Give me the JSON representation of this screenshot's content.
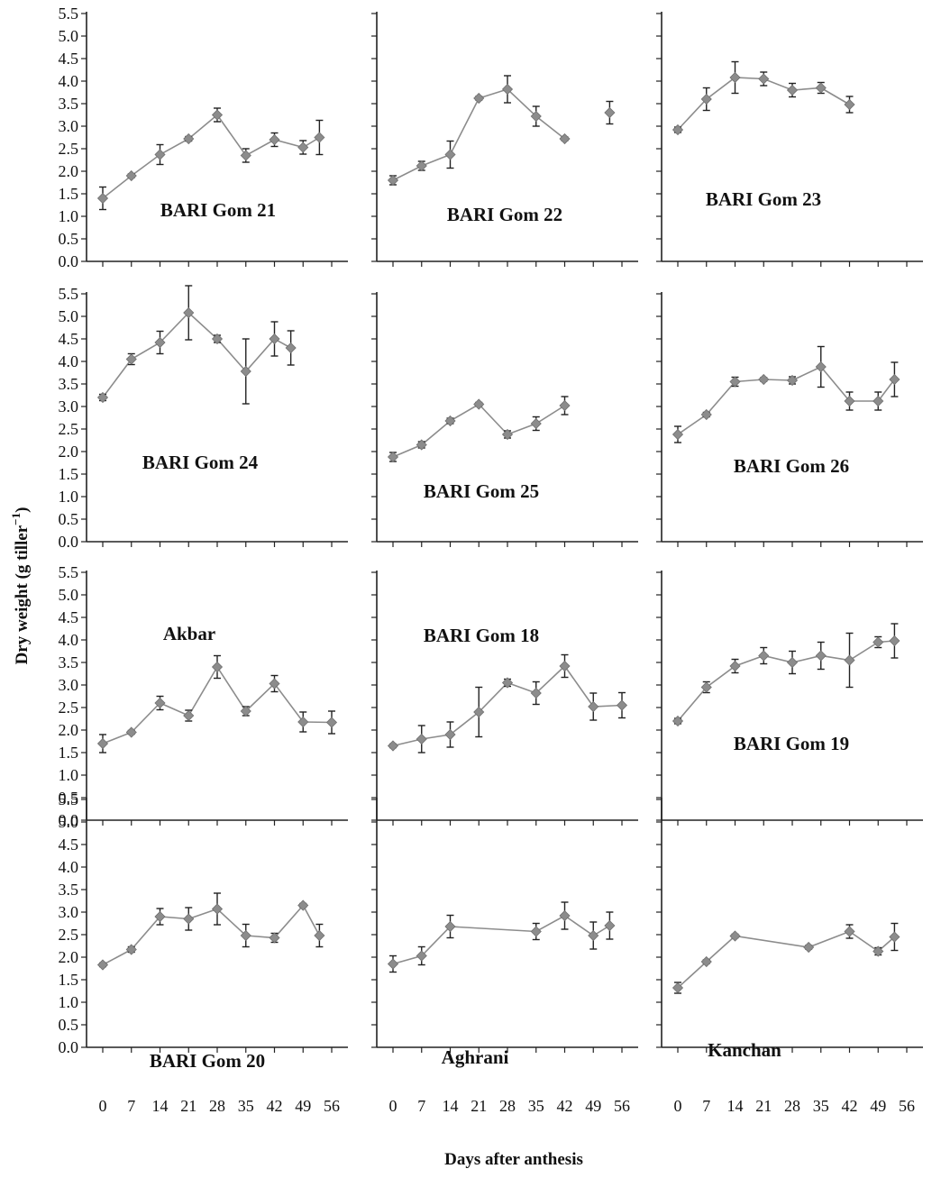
{
  "figure": {
    "ylabel_main": "Dry weight (g tiller",
    "ylabel_sup": "−1",
    "ylabel_close": ")",
    "xlabel": "Days after anthesis"
  },
  "chart_data": [
    {
      "type": "line",
      "label": "BARI Gom 21",
      "x": [
        0,
        7,
        14,
        21,
        28,
        35,
        42,
        49,
        53
      ],
      "y": [
        1.4,
        1.9,
        2.37,
        2.72,
        3.25,
        2.35,
        2.7,
        2.53,
        2.75
      ],
      "err": [
        0.25,
        0.04,
        0.22,
        0.05,
        0.15,
        0.15,
        0.15,
        0.15,
        0.38
      ],
      "ylim": [
        0,
        5.5
      ],
      "xticks": [
        0,
        7,
        14,
        21,
        28,
        35,
        42,
        49,
        56
      ],
      "yticks": [
        "0.0",
        "0.5",
        "1.0",
        "1.5",
        "2.0",
        "2.5",
        "3.0",
        "3.5",
        "4.0",
        "4.5",
        "5.0",
        "5.5"
      ]
    },
    {
      "type": "line",
      "label": "BARI Gom 22",
      "x": [
        0,
        7,
        14,
        21,
        28,
        35,
        42,
        49,
        53
      ],
      "y": [
        1.8,
        2.12,
        2.37,
        3.62,
        3.82,
        3.22,
        2.72,
        null,
        3.3
      ],
      "err": [
        0.1,
        0.1,
        0.3,
        0.04,
        0.3,
        0.22,
        0.04,
        null,
        0.25
      ],
      "ylim": [
        0,
        5.5
      ],
      "xticks": [
        0,
        7,
        14,
        21,
        28,
        35,
        42,
        49,
        56
      ]
    },
    {
      "type": "line",
      "label": "BARI Gom 23",
      "x": [
        0,
        7,
        14,
        21,
        28,
        35,
        42
      ],
      "y": [
        2.92,
        3.6,
        4.08,
        4.05,
        3.8,
        3.85,
        3.48
      ],
      "err": [
        0.06,
        0.25,
        0.35,
        0.15,
        0.15,
        0.12,
        0.18
      ],
      "ylim": [
        0,
        5.5
      ],
      "xticks": [
        0,
        7,
        14,
        21,
        28,
        35,
        42,
        49,
        56
      ]
    },
    {
      "type": "line",
      "label": "BARI Gom 24",
      "x": [
        0,
        7,
        14,
        21,
        28,
        35,
        42,
        46
      ],
      "y": [
        3.2,
        4.05,
        4.42,
        5.08,
        4.5,
        3.78,
        4.5,
        4.3
      ],
      "err": [
        0.07,
        0.12,
        0.25,
        0.6,
        0.08,
        0.72,
        0.38,
        0.38
      ],
      "ylim": [
        0,
        5.5
      ],
      "xticks": [
        0,
        7,
        14,
        21,
        28,
        35,
        42,
        49,
        56
      ],
      "yticks": [
        "0.0",
        "0.5",
        "1.0",
        "1.5",
        "2.0",
        "2.5",
        "3.0",
        "3.5",
        "4.0",
        "4.5",
        "5.0",
        "5.5"
      ]
    },
    {
      "type": "line",
      "label": "BARI Gom 25",
      "x": [
        0,
        7,
        14,
        21,
        28,
        35,
        42
      ],
      "y": [
        1.88,
        2.15,
        2.68,
        3.05,
        2.38,
        2.62,
        3.02
      ],
      "err": [
        0.1,
        0.07,
        0.06,
        0.04,
        0.08,
        0.15,
        0.2
      ],
      "ylim": [
        0,
        5.5
      ],
      "xticks": [
        0,
        7,
        14,
        21,
        28,
        35,
        42,
        49,
        56
      ]
    },
    {
      "type": "line",
      "label": "BARI Gom 26",
      "x": [
        0,
        7,
        14,
        21,
        28,
        35,
        42,
        49,
        53
      ],
      "y": [
        2.38,
        2.82,
        3.55,
        3.6,
        3.58,
        3.88,
        3.12,
        3.12,
        3.6
      ],
      "err": [
        0.18,
        0.05,
        0.1,
        0.04,
        0.08,
        0.45,
        0.2,
        0.2,
        0.38
      ],
      "ylim": [
        0,
        5.5
      ],
      "xticks": [
        0,
        7,
        14,
        21,
        28,
        35,
        42,
        49,
        56
      ]
    },
    {
      "type": "line",
      "label": "Akbar",
      "x": [
        0,
        7,
        14,
        21,
        28,
        35,
        42,
        49,
        56
      ],
      "y": [
        1.7,
        1.95,
        2.6,
        2.32,
        3.4,
        2.42,
        3.03,
        2.18,
        2.17
      ],
      "err": [
        0.2,
        0.04,
        0.15,
        0.12,
        0.25,
        0.1,
        0.18,
        0.22,
        0.25
      ],
      "ylim": [
        0,
        5.5
      ],
      "xticks": [
        0,
        7,
        14,
        21,
        28,
        35,
        42,
        49,
        56
      ],
      "yticks": [
        "0.0",
        "0.5",
        "1.0",
        "1.5",
        "2.0",
        "2.5",
        "3.0",
        "3.5",
        "4.0",
        "4.5",
        "5.0",
        "5.5"
      ]
    },
    {
      "type": "line",
      "label": "BARI Gom 18",
      "x": [
        0,
        7,
        14,
        21,
        28,
        35,
        42,
        49,
        56
      ],
      "y": [
        1.65,
        1.8,
        1.9,
        2.4,
        3.05,
        2.82,
        3.42,
        2.52,
        2.55
      ],
      "err": [
        0.04,
        0.3,
        0.28,
        0.55,
        0.08,
        0.25,
        0.25,
        0.3,
        0.28
      ],
      "ylim": [
        0,
        5.5
      ],
      "xticks": [
        0,
        7,
        14,
        21,
        28,
        35,
        42,
        49,
        56
      ]
    },
    {
      "type": "line",
      "label": "BARI Gom 19",
      "x": [
        0,
        7,
        14,
        21,
        28,
        35,
        42,
        49,
        53
      ],
      "y": [
        2.2,
        2.95,
        3.42,
        3.65,
        3.5,
        3.65,
        3.55,
        3.95,
        3.98
      ],
      "err": [
        0.06,
        0.12,
        0.15,
        0.18,
        0.25,
        0.3,
        0.6,
        0.12,
        0.38
      ],
      "ylim": [
        0,
        5.5
      ],
      "xticks": [
        0,
        7,
        14,
        21,
        28,
        35,
        42,
        49,
        56
      ]
    },
    {
      "type": "line",
      "label": "BARI Gom 20",
      "x": [
        0,
        7,
        14,
        21,
        28,
        35,
        42,
        49,
        53
      ],
      "y": [
        1.83,
        2.17,
        2.9,
        2.85,
        3.07,
        2.48,
        2.43,
        3.15,
        2.48
      ],
      "err": [
        0.04,
        0.06,
        0.18,
        0.25,
        0.35,
        0.25,
        0.1,
        0.04,
        0.25
      ],
      "ylim": [
        0,
        5.5
      ],
      "xticks": [
        0,
        7,
        14,
        21,
        28,
        35,
        42,
        49,
        56
      ],
      "yticks": [
        "0.0",
        "0.5",
        "1.0",
        "1.5",
        "2.0",
        "2.5",
        "3.0",
        "3.5",
        "4.0",
        "4.5",
        "5.0",
        "5.5"
      ]
    },
    {
      "type": "line",
      "label": "Aghrani",
      "x": [
        0,
        7,
        14,
        35,
        42,
        49,
        53
      ],
      "y": [
        1.85,
        2.03,
        2.68,
        2.57,
        2.92,
        2.48,
        2.7
      ],
      "err": [
        0.18,
        0.2,
        0.25,
        0.18,
        0.3,
        0.3,
        0.3
      ],
      "ylim": [
        0,
        5.5
      ],
      "xticks": [
        0,
        7,
        14,
        21,
        28,
        35,
        42,
        49,
        56
      ]
    },
    {
      "type": "line",
      "label": "Kanchan",
      "x": [
        0,
        7,
        14,
        32,
        42,
        49,
        53
      ],
      "y": [
        1.32,
        1.9,
        2.47,
        2.22,
        2.57,
        2.13,
        2.45
      ],
      "err": [
        0.12,
        0.04,
        0.04,
        0.04,
        0.15,
        0.08,
        0.3
      ],
      "ylim": [
        0,
        5.5
      ],
      "xticks": [
        0,
        7,
        14,
        21,
        28,
        35,
        42,
        49,
        56
      ]
    }
  ]
}
